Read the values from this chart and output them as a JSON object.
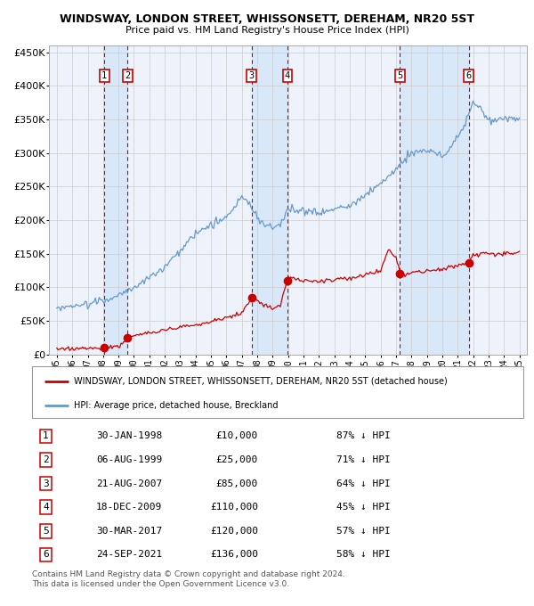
{
  "title": "WINDSWAY, LONDON STREET, WHISSONSETT, DEREHAM, NR20 5ST",
  "subtitle": "Price paid vs. HM Land Registry's House Price Index (HPI)",
  "legend_red": "WINDSWAY, LONDON STREET, WHISSONSETT, DEREHAM, NR20 5ST (detached house)",
  "legend_blue": "HPI: Average price, detached house, Breckland",
  "footer1": "Contains HM Land Registry data © Crown copyright and database right 2024.",
  "footer2": "This data is licensed under the Open Government Licence v3.0.",
  "sales": [
    {
      "num": 1,
      "date_str": "30-JAN-1998",
      "price": 10000,
      "pct": "87% ↓ HPI",
      "year": 1998.08
    },
    {
      "num": 2,
      "date_str": "06-AUG-1999",
      "price": 25000,
      "pct": "71% ↓ HPI",
      "year": 1999.59
    },
    {
      "num": 3,
      "date_str": "21-AUG-2007",
      "price": 85000,
      "pct": "64% ↓ HPI",
      "year": 2007.64
    },
    {
      "num": 4,
      "date_str": "18-DEC-2009",
      "price": 110000,
      "pct": "45% ↓ HPI",
      "year": 2009.96
    },
    {
      "num": 5,
      "date_str": "30-MAR-2017",
      "price": 120000,
      "pct": "57% ↓ HPI",
      "year": 2017.25
    },
    {
      "num": 6,
      "date_str": "24-SEP-2021",
      "price": 136000,
      "pct": "58% ↓ HPI",
      "year": 2021.73
    }
  ],
  "xlim": [
    1994.5,
    2025.5
  ],
  "ylim": [
    0,
    460000
  ],
  "yticks": [
    0,
    50000,
    100000,
    150000,
    200000,
    250000,
    300000,
    350000,
    400000,
    450000
  ],
  "ytick_labels": [
    "£0",
    "£50K",
    "£100K",
    "£150K",
    "£200K",
    "£250K",
    "£300K",
    "£350K",
    "£400K",
    "£450K"
  ],
  "red_color": "#cc0000",
  "blue_color": "#6699cc",
  "bg_color": "#eef2fa",
  "grid_color": "#cccccc",
  "shade_color": "#d8e8f8",
  "vline_color": "#cc0000"
}
